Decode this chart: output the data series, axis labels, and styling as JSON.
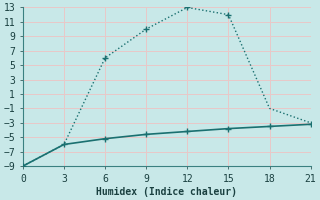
{
  "xlabel": "Humidex (Indice chaleur)",
  "background_color": "#c8e8e8",
  "grid_color_major": "#e8c8c8",
  "grid_color_minor": "#d8e0e0",
  "line_color": "#1a7070",
  "xlim": [
    0,
    21
  ],
  "ylim": [
    -9,
    13
  ],
  "xticks": [
    0,
    3,
    6,
    9,
    12,
    15,
    18,
    21
  ],
  "yticks": [
    -9,
    -7,
    -5,
    -3,
    -1,
    1,
    3,
    5,
    7,
    9,
    11,
    13
  ],
  "line1_x": [
    0,
    3,
    6,
    9,
    12,
    15,
    18,
    21
  ],
  "line1_y": [
    -9,
    -6,
    6,
    10,
    13,
    12,
    -1,
    -3
  ],
  "line2_x": [
    0,
    3,
    6,
    9,
    12,
    15,
    18,
    21
  ],
  "line2_y": [
    -9,
    -6,
    -5.2,
    -4.6,
    -4.2,
    -3.8,
    -3.5,
    -3.2
  ],
  "line1_style": ":",
  "line2_style": "-",
  "marker": "+",
  "marker_size": 5,
  "linewidth1": 1.0,
  "linewidth2": 1.2
}
